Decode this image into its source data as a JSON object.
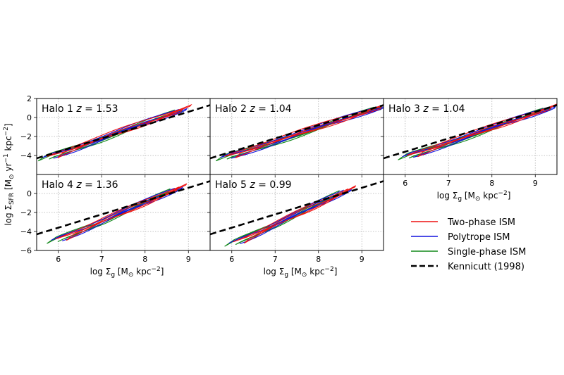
{
  "figure": {
    "ylabel": "log Σ_SFR [M⊙ yr⁻¹ kpc⁻²]",
    "xlabel": "log Σ_g [M⊙ kpc⁻²]"
  },
  "legend": {
    "items": [
      {
        "label": "Two-phase ISM",
        "color": "#ee1111",
        "dash": "solid"
      },
      {
        "label": "Polytrope ISM",
        "color": "#1111dd",
        "dash": "solid"
      },
      {
        "label": "Single-phase ISM",
        "color": "#11881a",
        "dash": "solid"
      },
      {
        "label": "Kennicutt (1998)",
        "color": "#000000",
        "dash": "dashed"
      }
    ]
  },
  "chart_data": [
    {
      "type": "line",
      "panel": "Halo 1",
      "title": "Halo 1   z = 1.53",
      "xlim": [
        5.5,
        9.5
      ],
      "ylim": [
        -6,
        2
      ],
      "xticks": [
        6,
        7,
        8,
        9
      ],
      "yticks": [
        -4,
        -2,
        0,
        2
      ],
      "grid": true,
      "show_xticklabels": false,
      "show_yticklabels": true,
      "xlabel": "",
      "kennicutt": {
        "x": [
          5.5,
          9.5
        ],
        "y": [
          -4.3,
          1.3
        ]
      }
    },
    {
      "type": "line",
      "panel": "Halo 2",
      "title": "Halo 2   z = 1.04",
      "xlim": [
        5.5,
        9.5
      ],
      "ylim": [
        -6,
        2
      ],
      "xticks": [
        6,
        7,
        8,
        9
      ],
      "yticks": [
        -4,
        -2,
        0,
        2
      ],
      "grid": true,
      "show_xticklabels": false,
      "show_yticklabels": false,
      "xlabel": "",
      "kennicutt": {
        "x": [
          5.5,
          9.5
        ],
        "y": [
          -4.3,
          1.3
        ]
      }
    },
    {
      "type": "line",
      "panel": "Halo 3",
      "title": "Halo 3   z = 1.04",
      "xlim": [
        5.5,
        9.5
      ],
      "ylim": [
        -6,
        2
      ],
      "xticks": [
        6,
        7,
        8,
        9
      ],
      "yticks": [
        -4,
        -2,
        0,
        2
      ],
      "grid": true,
      "show_xticklabels": true,
      "show_yticklabels": false,
      "xlabel": "log Σ_g [M⊙ kpc⁻²]",
      "kennicutt": {
        "x": [
          5.5,
          9.5
        ],
        "y": [
          -4.3,
          1.3
        ]
      }
    },
    {
      "type": "line",
      "panel": "Halo 4",
      "title": "Halo 4   z = 1.36",
      "xlim": [
        5.5,
        9.5
      ],
      "ylim": [
        -6,
        2
      ],
      "xticks": [
        6,
        7,
        8,
        9
      ],
      "yticks": [
        -6,
        -4,
        -2,
        0
      ],
      "grid": true,
      "show_xticklabels": true,
      "show_yticklabels": true,
      "xlabel": "log Σ_g [M⊙ kpc⁻²]",
      "kennicutt": {
        "x": [
          5.5,
          9.5
        ],
        "y": [
          -4.3,
          1.3
        ]
      }
    },
    {
      "type": "line",
      "panel": "Halo 5",
      "title": "Halo 5   z = 0.99",
      "xlim": [
        5.5,
        9.5
      ],
      "ylim": [
        -6,
        2
      ],
      "xticks": [
        6,
        7,
        8,
        9
      ],
      "yticks": [
        -6,
        -4,
        -2,
        0
      ],
      "grid": true,
      "show_xticklabels": true,
      "show_yticklabels": false,
      "xlabel": "log Σ_g [M⊙ kpc⁻²]",
      "kennicutt": {
        "x": [
          5.5,
          9.5
        ],
        "y": [
          -4.3,
          1.3
        ]
      }
    }
  ]
}
